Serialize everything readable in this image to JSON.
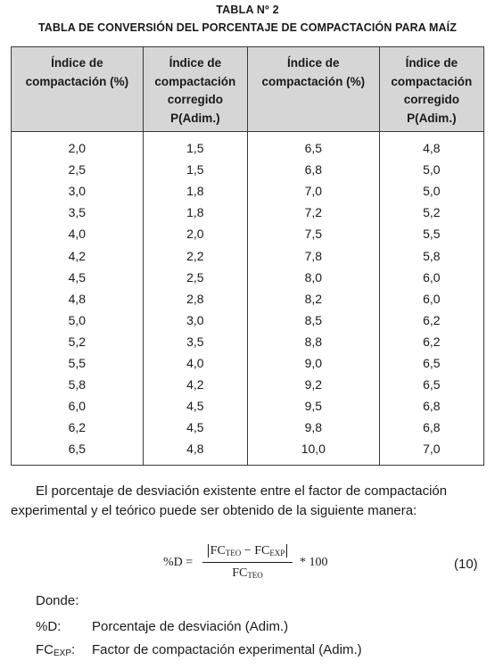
{
  "title": {
    "line1": "TABLA Nº 2",
    "line2": "TABLA DE CONVERSIÓN DEL PORCENTAJE DE COMPACTACIÓN PARA MAÍZ"
  },
  "table": {
    "headers": [
      [
        "Índice de",
        "compactación (%)"
      ],
      [
        "Índice de",
        "compactación",
        "corregido",
        "P(Adim.)"
      ],
      [
        "Índice de",
        "compactación (%)"
      ],
      [
        "Índice de",
        "compactación",
        "corregido",
        "P(Adim.)"
      ]
    ],
    "rows": [
      [
        "2,0",
        "1,5",
        "6,5",
        "4,8"
      ],
      [
        "2,5",
        "1,5",
        "6,8",
        "5,0"
      ],
      [
        "3,0",
        "1,8",
        "7,0",
        "5,0"
      ],
      [
        "3,5",
        "1,8",
        "7,2",
        "5,2"
      ],
      [
        "4,0",
        "2,0",
        "7,5",
        "5,5"
      ],
      [
        "4,2",
        "2,2",
        "7,8",
        "5,8"
      ],
      [
        "4,5",
        "2,5",
        "8,0",
        "6,0"
      ],
      [
        "4,8",
        "2,8",
        "8,2",
        "6,0"
      ],
      [
        "5,0",
        "3,0",
        "8,5",
        "6,2"
      ],
      [
        "5,2",
        "3,5",
        "8,8",
        "6,2"
      ],
      [
        "5,5",
        "4,0",
        "9,0",
        "6,5"
      ],
      [
        "5,8",
        "4,2",
        "9,2",
        "6,5"
      ],
      [
        "6,0",
        "4,5",
        "9,5",
        "6,8"
      ],
      [
        "6,2",
        "4,5",
        "9,8",
        "6,8"
      ],
      [
        "6,5",
        "4,8",
        "10,0",
        "7,0"
      ]
    ]
  },
  "paragraph": "El porcentaje de desviación existente entre el factor de compactación experimental y el teórico puede ser obtenido de la siguiente manera:",
  "formula": {
    "lhs": "%D =",
    "fc": "FC",
    "teo": "TEO",
    "exp": "EXP",
    "minus": "−",
    "rhs": "* 100",
    "number": "(10)"
  },
  "donde": "Donde:",
  "definitions": [
    {
      "symbol": "%D:",
      "symbol_sub": "",
      "text": "Porcentaje de desviación (Adim.)"
    },
    {
      "symbol": "FC",
      "symbol_sub": "EXP",
      "symbol_suffix": ":",
      "text": "Factor de compactación experimental (Adim.)"
    }
  ]
}
